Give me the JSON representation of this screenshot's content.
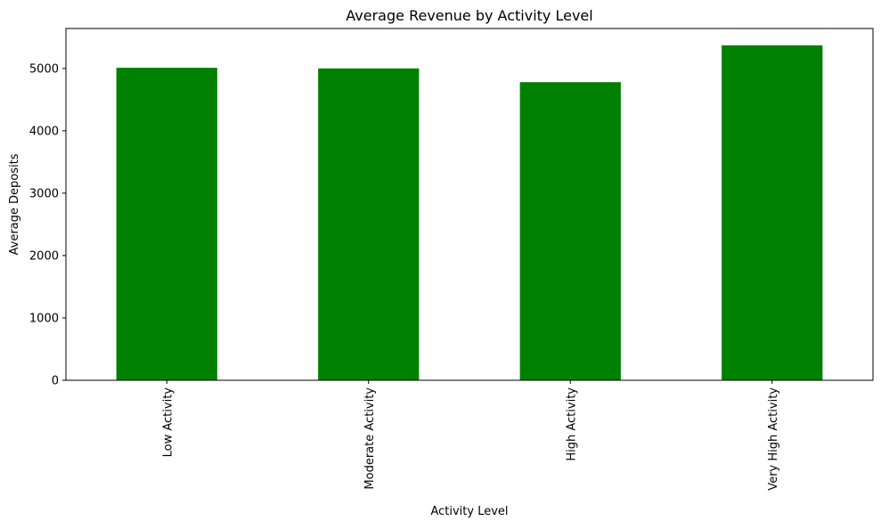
{
  "chart_data": {
    "type": "bar",
    "title": "Average Revenue by Activity Level",
    "xlabel": "Activity Level",
    "ylabel": "Average Deposits",
    "categories": [
      "Low Activity",
      "Moderate Activity",
      "High Activity",
      "Very High Activity"
    ],
    "values": [
      5010,
      5000,
      4780,
      5370
    ],
    "ylim": [
      0,
      5640
    ],
    "yticks": [
      0,
      1000,
      2000,
      3000,
      4000,
      5000
    ],
    "ytick_labels": [
      "0",
      "1000",
      "2000",
      "3000",
      "4000",
      "5000"
    ],
    "bar_color": "#008000",
    "grid": false,
    "legend": "none"
  }
}
